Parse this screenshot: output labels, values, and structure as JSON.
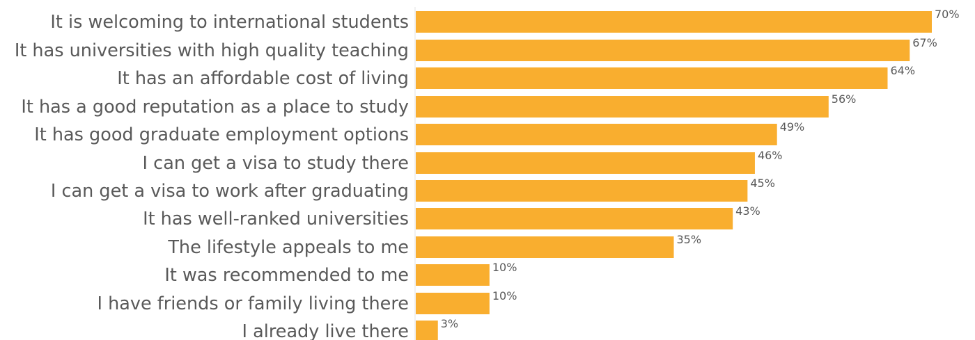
{
  "chart_data": {
    "type": "bar",
    "orientation": "horizontal",
    "categories": [
      "It is welcoming to international students",
      "It has universities with high quality teaching",
      "It has an affordable cost of living",
      "It has a good reputation as a place to study",
      "It has good graduate employment options",
      "I can get a visa to study there",
      "I can get a visa to work after graduating",
      "It has well-ranked universities",
      "The lifestyle appeals to me",
      "It was recommended to me",
      "I have friends or family living there",
      "I already live there"
    ],
    "values": [
      70,
      67,
      64,
      56,
      49,
      46,
      45,
      43,
      35,
      10,
      10,
      3
    ],
    "data_labels": [
      "70%",
      "67%",
      "64%",
      "56%",
      "49%",
      "46%",
      "45%",
      "43%",
      "35%",
      "10%",
      "10%",
      "3%"
    ],
    "title": "",
    "xlabel": "",
    "ylabel": "",
    "xlim": [
      0,
      70
    ],
    "grid": false,
    "legend": "none",
    "bar_color": "#F9AE2F",
    "axis_color": "#E3E3E3",
    "text_color": "#595959"
  }
}
